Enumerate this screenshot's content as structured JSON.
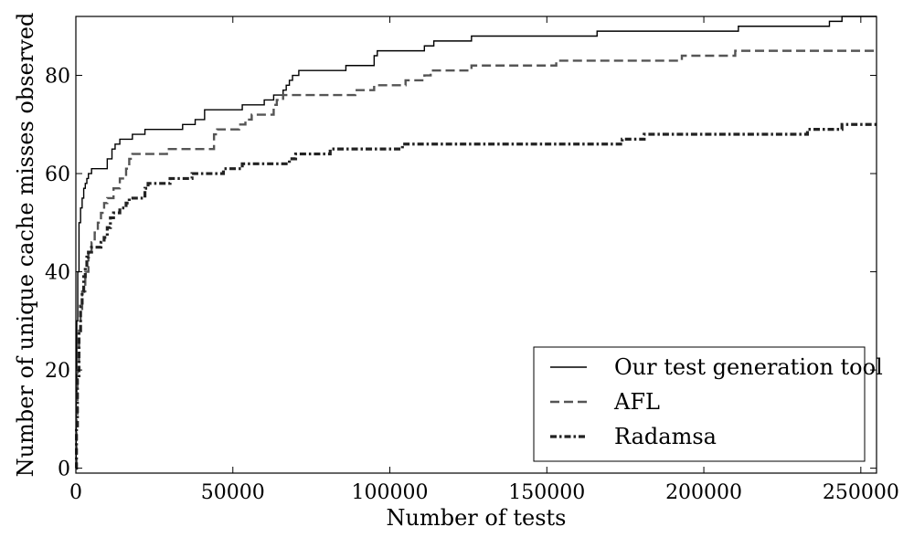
{
  "chart_data": {
    "type": "line",
    "title": "",
    "xlabel": "Number of tests",
    "ylabel": "Number of unique cache misses observed",
    "xlim": [
      0,
      255000
    ],
    "ylim": [
      -1,
      92
    ],
    "x_ticks": [
      0,
      50000,
      100000,
      150000,
      200000,
      250000
    ],
    "y_ticks": [
      0,
      20,
      40,
      60,
      80
    ],
    "grid": false,
    "legend": {
      "position": "bottom-right"
    },
    "series": [
      {
        "name": "Our test generation tool",
        "style": "solid",
        "color": "#000000",
        "points": [
          [
            0,
            0
          ],
          [
            100,
            15
          ],
          [
            300,
            30
          ],
          [
            600,
            40
          ],
          [
            1000,
            50
          ],
          [
            1500,
            53
          ],
          [
            2000,
            55
          ],
          [
            2500,
            57
          ],
          [
            3000,
            58
          ],
          [
            3500,
            59
          ],
          [
            4000,
            60
          ],
          [
            5000,
            61
          ],
          [
            8000,
            61
          ],
          [
            10000,
            63
          ],
          [
            11500,
            65
          ],
          [
            12500,
            66
          ],
          [
            14000,
            67
          ],
          [
            17000,
            67
          ],
          [
            18000,
            68
          ],
          [
            21000,
            68
          ],
          [
            22000,
            69
          ],
          [
            33000,
            69
          ],
          [
            34000,
            70
          ],
          [
            37000,
            70
          ],
          [
            38000,
            71
          ],
          [
            40000,
            71
          ],
          [
            41000,
            73
          ],
          [
            52000,
            73
          ],
          [
            53000,
            74
          ],
          [
            59000,
            74
          ],
          [
            60000,
            75
          ],
          [
            62000,
            75
          ],
          [
            63000,
            76
          ],
          [
            65000,
            76
          ],
          [
            66000,
            77
          ],
          [
            67000,
            78
          ],
          [
            68000,
            79
          ],
          [
            69000,
            80
          ],
          [
            71000,
            81
          ],
          [
            85000,
            81
          ],
          [
            86000,
            82
          ],
          [
            94000,
            82
          ],
          [
            95000,
            84
          ],
          [
            96000,
            85
          ],
          [
            110000,
            85
          ],
          [
            111000,
            86
          ],
          [
            113000,
            86
          ],
          [
            114000,
            87
          ],
          [
            125000,
            87
          ],
          [
            126000,
            88
          ],
          [
            165000,
            88
          ],
          [
            166000,
            89
          ],
          [
            210000,
            89
          ],
          [
            211000,
            90
          ],
          [
            239000,
            90
          ],
          [
            240000,
            91
          ],
          [
            243000,
            91
          ],
          [
            244000,
            92
          ],
          [
            255000,
            92
          ]
        ]
      },
      {
        "name": "AFL",
        "style": "dashed",
        "color": "#555555",
        "points": [
          [
            0,
            0
          ],
          [
            200,
            10
          ],
          [
            500,
            20
          ],
          [
            1000,
            28
          ],
          [
            1500,
            32
          ],
          [
            2000,
            36
          ],
          [
            3000,
            40
          ],
          [
            4000,
            44
          ],
          [
            5000,
            46
          ],
          [
            6000,
            48
          ],
          [
            7000,
            50
          ],
          [
            8000,
            52
          ],
          [
            9000,
            54
          ],
          [
            10000,
            55
          ],
          [
            12000,
            57
          ],
          [
            14000,
            59
          ],
          [
            16000,
            61
          ],
          [
            17000,
            63
          ],
          [
            18000,
            64
          ],
          [
            28000,
            64
          ],
          [
            29000,
            65
          ],
          [
            43000,
            65
          ],
          [
            44000,
            68
          ],
          [
            45000,
            69
          ],
          [
            50000,
            69
          ],
          [
            52000,
            70
          ],
          [
            54000,
            71
          ],
          [
            56000,
            72
          ],
          [
            62000,
            72
          ],
          [
            63000,
            74
          ],
          [
            64000,
            75
          ],
          [
            66000,
            76
          ],
          [
            88000,
            76
          ],
          [
            89000,
            77
          ],
          [
            94000,
            77
          ],
          [
            95000,
            78
          ],
          [
            104000,
            78
          ],
          [
            105000,
            79
          ],
          [
            110000,
            79
          ],
          [
            111000,
            80
          ],
          [
            113000,
            81
          ],
          [
            125000,
            81
          ],
          [
            126000,
            82
          ],
          [
            152000,
            82
          ],
          [
            153000,
            83
          ],
          [
            192000,
            83
          ],
          [
            193000,
            84
          ],
          [
            209000,
            84
          ],
          [
            210000,
            85
          ],
          [
            255000,
            85
          ]
        ]
      },
      {
        "name": "Radamsa",
        "style": "dashdot",
        "color": "#222222",
        "points": [
          [
            0,
            0
          ],
          [
            200,
            8
          ],
          [
            500,
            18
          ],
          [
            1000,
            28
          ],
          [
            1500,
            33
          ],
          [
            2000,
            36
          ],
          [
            2500,
            39
          ],
          [
            3000,
            41
          ],
          [
            3500,
            43
          ],
          [
            4000,
            44
          ],
          [
            5000,
            45
          ],
          [
            7000,
            45
          ],
          [
            8000,
            46
          ],
          [
            9000,
            47
          ],
          [
            10000,
            49
          ],
          [
            11000,
            51
          ],
          [
            12000,
            52
          ],
          [
            14000,
            53
          ],
          [
            16000,
            54
          ],
          [
            17000,
            55
          ],
          [
            21000,
            55
          ],
          [
            22000,
            57
          ],
          [
            23000,
            58
          ],
          [
            29000,
            58
          ],
          [
            30000,
            59
          ],
          [
            36000,
            59
          ],
          [
            37000,
            60
          ],
          [
            46000,
            60
          ],
          [
            47000,
            61
          ],
          [
            52000,
            61
          ],
          [
            53000,
            62
          ],
          [
            67000,
            62
          ],
          [
            68000,
            63
          ],
          [
            69000,
            63
          ],
          [
            70000,
            64
          ],
          [
            80000,
            64
          ],
          [
            81000,
            65
          ],
          [
            103000,
            65
          ],
          [
            104000,
            66
          ],
          [
            173000,
            66
          ],
          [
            174000,
            67
          ],
          [
            180000,
            67
          ],
          [
            181000,
            68
          ],
          [
            232000,
            68
          ],
          [
            233000,
            69
          ],
          [
            243000,
            69
          ],
          [
            244000,
            70
          ],
          [
            255000,
            70
          ]
        ]
      }
    ]
  }
}
